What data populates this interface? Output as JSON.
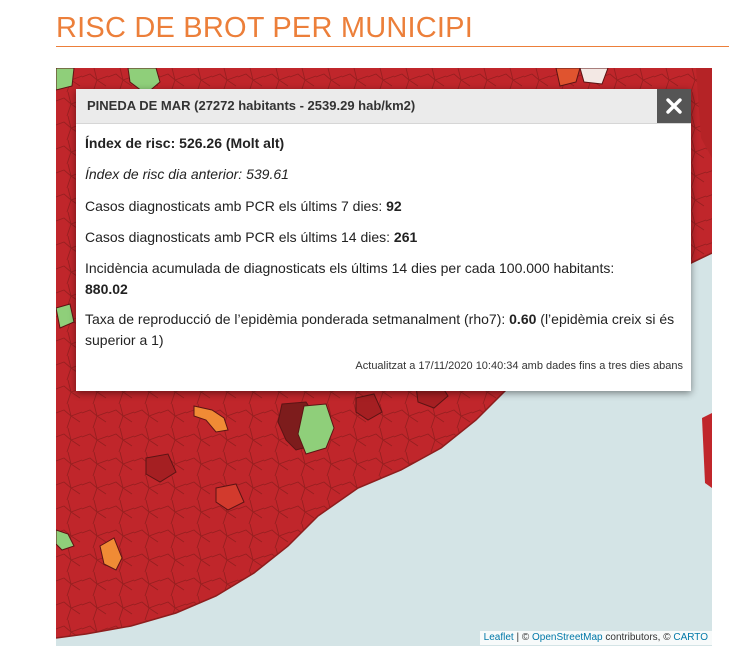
{
  "header": {
    "title": "RISC DE BROT PER MUNICIPI"
  },
  "colors": {
    "accent": "#ec7f3a",
    "risk_molt_alt": "#c0262b",
    "risk_very_dark": "#7d1c1c",
    "risk_alt": "#e0542f",
    "risk_moderat": "#f08b35",
    "risk_baix": "#8fcf7a",
    "sea": "#d4e4e6"
  },
  "popup": {
    "title": "PINEDA DE MAR (27272 habitants - 2539.29 hab/km2)",
    "close_icon": "close-x-icon",
    "risk_index_label": "Índex de risc:",
    "risk_index_value": "526.26 (Molt alt)",
    "prev_day_label": "Índex de risc dia anterior:",
    "prev_day_value": "539.61",
    "pcr7_label": "Casos diagnosticats amb PCR els últims 7 dies:",
    "pcr7_value": "92",
    "pcr14_label": "Casos diagnosticats amb PCR els últims 14 dies:",
    "pcr14_value": "261",
    "incidence_label": "Incidència acumulada de diagnosticats els últims 14 dies per cada 100.000 habitants:",
    "incidence_value": "880.02",
    "rho_label": "Taxa de reproducció de l’epidèmia ponderada setmanalment (rho7):",
    "rho_value": "0.60",
    "rho_note": "(l’epidèmia creix si és superior a 1)",
    "updated": "Actualitzat a 17/11/2020 10:40:34 amb dades fins a tres dies abans"
  },
  "attribution": {
    "leaflet": "Leaflet",
    "sep1": " | © ",
    "osm": "OpenStreetMap",
    "contrib": " contributors, © ",
    "carto": "CARTO"
  }
}
